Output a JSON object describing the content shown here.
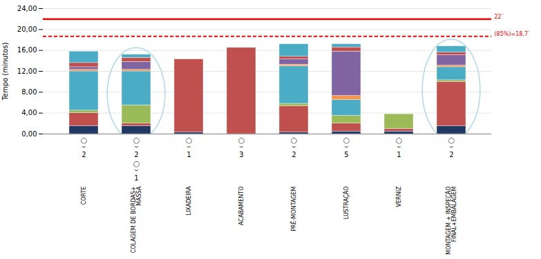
{
  "chart_data": {
    "type": "bar",
    "stacked": true,
    "categories": [
      "CORTE",
      "COLAGEM DE BORDAS+\nMASSA",
      "LIXADEIRA",
      "ACABAMENTO",
      "PRÉ-MONTAGEM",
      "LUSTRAÇÃO",
      "VERNIZ",
      "MONTAGEM + INSPEÇÃO\nFINAL+EMBALAGEM"
    ],
    "series": [
      {
        "color": "#1F3864",
        "values": [
          1.5,
          1.5,
          0.3,
          0.0,
          0.3,
          0.5,
          0.5,
          1.5
        ]
      },
      {
        "color": "#C0504D",
        "values": [
          2.5,
          0.5,
          14.0,
          16.5,
          5.0,
          1.5,
          0.5,
          8.5
        ]
      },
      {
        "color": "#9BBB59",
        "values": [
          0.5,
          3.5,
          0.0,
          0.0,
          0.5,
          1.5,
          2.8,
          0.3
        ]
      },
      {
        "color": "#4BACC6",
        "values": [
          7.5,
          6.5,
          0.0,
          0.0,
          7.2,
          3.0,
          0.0,
          2.5
        ]
      },
      {
        "color": "#F79646",
        "values": [
          0.3,
          0.3,
          0.0,
          0.0,
          0.3,
          0.8,
          0.0,
          0.3
        ]
      },
      {
        "color": "#8064A2",
        "values": [
          0.5,
          1.5,
          0.0,
          0.0,
          1.0,
          8.5,
          0.0,
          2.0
        ]
      },
      {
        "color": "#C0504D",
        "values": [
          0.8,
          0.8,
          0.0,
          0.0,
          0.5,
          0.8,
          0.0,
          0.5
        ]
      },
      {
        "color": "#4BACC6",
        "values": [
          2.2,
          0.6,
          0.0,
          0.0,
          2.4,
          0.6,
          0.0,
          1.2
        ]
      }
    ],
    "ylabel": "Tempo (minutos)",
    "ylim": [
      0,
      24
    ],
    "yticks": [
      {
        "value": 0,
        "label": "0,00"
      },
      {
        "value": 4,
        "label": "4,00"
      },
      {
        "value": 8,
        "label": "8,00"
      },
      {
        "value": 12,
        "label": "12,00"
      },
      {
        "value": 16,
        "label": "16,00"
      },
      {
        "value": 20,
        "label": "20,00"
      },
      {
        "value": 24,
        "label": "24,00"
      }
    ],
    "grid": true,
    "annotations": [
      {
        "type": "hline",
        "y": 22.0,
        "label": "22`",
        "color": "red",
        "line_style": "solid"
      },
      {
        "type": "hline",
        "y": 18.7,
        "label": "(85%)=18,7`",
        "color": "red",
        "line_style": "dashed"
      },
      {
        "type": "ellipse",
        "categories": [
          "COLAGEM DE BORDAS+\nMASSA",
          "MONTAGEM + INSPEÇÃO\nFINAL+EMBALAGEM"
        ],
        "color": "#ADD8E6"
      }
    ],
    "operator_icon": [
      "○",
      "⌣"
    ],
    "operators": [
      2,
      2,
      1,
      3,
      2,
      5,
      1,
      2
    ],
    "operators_extra": [
      null,
      1,
      null,
      null,
      null,
      null,
      null,
      null
    ]
  }
}
